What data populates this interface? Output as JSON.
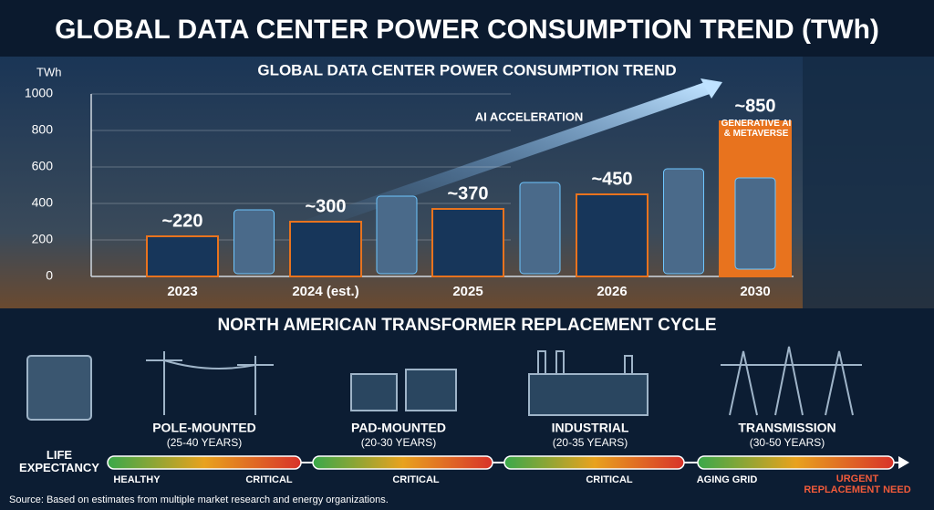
{
  "header": {
    "title": "GLOBAL DATA CENTER POWER CONSUMPTION TREND (TWh)"
  },
  "chart_data": {
    "type": "bar",
    "title": "GLOBAL DATA CENTER POWER CONSUMPTION TREND",
    "y_label": "TWh",
    "categories": [
      "2023",
      "2024 (est.)",
      "2025",
      "2026",
      "2030"
    ],
    "values": [
      220,
      300,
      370,
      450,
      850
    ],
    "value_labels": [
      "~220",
      "~300",
      "~370",
      "~450",
      "~850"
    ],
    "colors": [
      "#17365a",
      "#17365a",
      "#17365a",
      "#17365a",
      "#e8731e"
    ],
    "edge_color": "#e8731e",
    "ylim": [
      0,
      1000
    ],
    "yticks": [
      0,
      200,
      400,
      600,
      800,
      1000
    ],
    "grid": true,
    "annotations": [
      "AI ACCELERATION",
      "GENERATIVE AI & METAVERSE"
    ]
  },
  "transformer": {
    "title": "NORTH AMERICAN TRANSFORMER REPLACEMENT CYCLE",
    "life_label": "LIFE EXPECTANCY",
    "types": [
      {
        "name": "POLE-MOUNTED",
        "years": "(25-40 YEARS)"
      },
      {
        "name": "PAD-MOUNTED",
        "years": "(20-30 YEARS)"
      },
      {
        "name": "INDUSTRIAL",
        "years": "(20-35 YEARS)"
      },
      {
        "name": "TRANSMISSION",
        "years": "(30-50 YEARS)"
      }
    ],
    "status_labels": [
      "HEALTHY",
      "CRITICAL",
      "CRITICAL",
      "CRITICAL",
      "AGING GRID",
      "URGENT REPLACEMENT NEED"
    ]
  },
  "footer": {
    "source": "Source: Based on estimates from multiple market research and energy organizations."
  }
}
